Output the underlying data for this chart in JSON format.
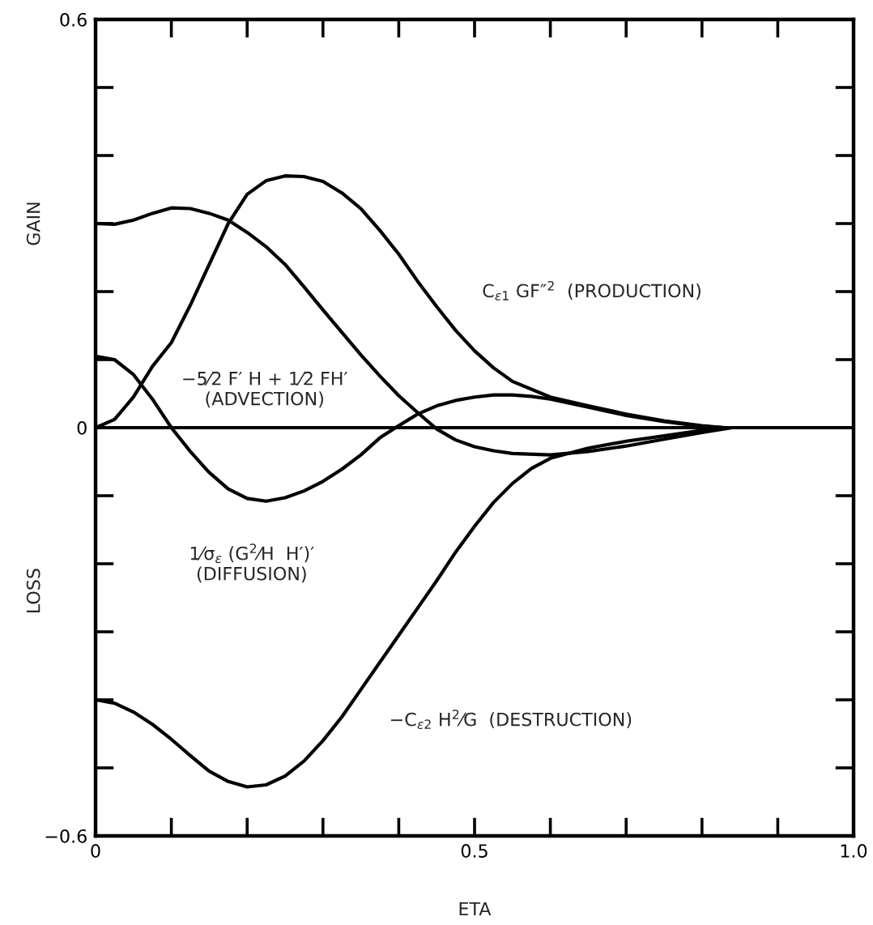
{
  "chart_data": {
    "type": "line",
    "xlabel": "ETA",
    "xlim": [
      0,
      1.0
    ],
    "ylim": [
      -0.6,
      0.6
    ],
    "xticks": [
      0,
      {
        "value": 0.1,
        "label": null
      },
      {
        "value": 0.2,
        "label": null
      },
      {
        "value": 0.3,
        "label": null
      },
      {
        "value": 0.4,
        "label": null
      },
      0.5,
      {
        "value": 0.6,
        "label": null
      },
      {
        "value": 0.7,
        "label": null
      },
      {
        "value": 0.8,
        "label": null
      },
      {
        "value": 0.9,
        "label": null
      },
      {
        "value": 1.0,
        "label": "1.0"
      }
    ],
    "yticks": [
      {
        "value": -0.6,
        "label": "−0.6"
      },
      {
        "value": -0.5,
        "label": null
      },
      {
        "value": -0.4,
        "label": null
      },
      {
        "value": -0.3,
        "label": null
      },
      {
        "value": -0.2,
        "label": null
      },
      {
        "value": -0.1,
        "label": null
      },
      0,
      {
        "value": 0.1,
        "label": null
      },
      {
        "value": 0.2,
        "label": null
      },
      {
        "value": 0.3,
        "label": null
      },
      {
        "value": 0.4,
        "label": null
      },
      {
        "value": 0.5,
        "label": null
      },
      0.6
    ],
    "ref_lines": [
      {
        "axis": "y",
        "value": 0,
        "color": "#000000"
      }
    ],
    "series": [
      {
        "color": "#000000",
        "x": [
          0,
          0.025,
          0.05,
          0.075,
          0.1,
          0.125,
          0.15,
          0.175,
          0.2,
          0.225,
          0.25,
          0.275,
          0.3,
          0.325,
          0.35,
          0.375,
          0.4,
          0.425,
          0.45,
          0.475,
          0.5,
          0.525,
          0.55,
          0.6,
          0.65,
          0.7,
          0.75,
          0.8,
          0.83
        ],
        "values": [
          0,
          0.012,
          0.045,
          0.09,
          0.125,
          0.18,
          0.24,
          0.3,
          0.343,
          0.363,
          0.37,
          0.369,
          0.362,
          0.345,
          0.322,
          0.29,
          0.255,
          0.215,
          0.178,
          0.143,
          0.113,
          0.088,
          0.068,
          0.045,
          0.032,
          0.02,
          0.01,
          0.003,
          0
        ]
      },
      {
        "color": "#000000",
        "x": [
          0,
          0.025,
          0.05,
          0.075,
          0.1,
          0.125,
          0.15,
          0.175,
          0.2,
          0.225,
          0.25,
          0.275,
          0.3,
          0.325,
          0.35,
          0.375,
          0.4,
          0.425,
          0.45,
          0.475,
          0.5,
          0.525,
          0.55,
          0.6,
          0.65,
          0.7,
          0.75,
          0.8,
          0.84
        ],
        "values": [
          0.3,
          0.299,
          0.305,
          0.315,
          0.323,
          0.322,
          0.315,
          0.305,
          0.287,
          0.266,
          0.24,
          0.207,
          0.173,
          0.14,
          0.107,
          0.076,
          0.047,
          0.022,
          -0.002,
          -0.018,
          -0.028,
          -0.034,
          -0.038,
          -0.04,
          -0.035,
          -0.027,
          -0.017,
          -0.007,
          0
        ]
      },
      {
        "color": "#000000",
        "x": [
          0,
          0.025,
          0.05,
          0.075,
          0.1,
          0.125,
          0.15,
          0.175,
          0.2,
          0.225,
          0.25,
          0.275,
          0.3,
          0.325,
          0.35,
          0.375,
          0.4,
          0.425,
          0.45,
          0.475,
          0.5,
          0.525,
          0.55,
          0.575,
          0.6,
          0.65,
          0.7,
          0.75,
          0.8,
          0.83
        ],
        "values": [
          0.105,
          0.1,
          0.078,
          0.042,
          0.0,
          -0.035,
          -0.066,
          -0.09,
          -0.104,
          -0.108,
          -0.103,
          -0.093,
          -0.079,
          -0.061,
          -0.04,
          -0.015,
          0.003,
          0.02,
          0.032,
          0.04,
          0.045,
          0.048,
          0.048,
          0.046,
          0.042,
          0.03,
          0.018,
          0.009,
          0.002,
          0
        ]
      },
      {
        "color": "#000000",
        "x": [
          0,
          0.025,
          0.05,
          0.075,
          0.1,
          0.125,
          0.15,
          0.175,
          0.2,
          0.225,
          0.25,
          0.275,
          0.3,
          0.325,
          0.35,
          0.375,
          0.4,
          0.425,
          0.45,
          0.475,
          0.5,
          0.525,
          0.55,
          0.575,
          0.6,
          0.65,
          0.7,
          0.75,
          0.8,
          0.83
        ],
        "values": [
          -0.4,
          -0.405,
          -0.418,
          -0.436,
          -0.458,
          -0.482,
          -0.505,
          -0.52,
          -0.528,
          -0.525,
          -0.512,
          -0.49,
          -0.46,
          -0.425,
          -0.385,
          -0.345,
          -0.305,
          -0.265,
          -0.225,
          -0.183,
          -0.145,
          -0.11,
          -0.082,
          -0.06,
          -0.045,
          -0.03,
          -0.02,
          -0.012,
          -0.004,
          0
        ]
      }
    ],
    "annotations": [
      "GAIN",
      "LOSS",
      "C$_{ε1}$ GF″$^{2}$  (PRODUCTION)",
      "−5⁄2 F′ H + 1⁄2 FH′\n(ADVECTION)",
      "1⁄σ$_{ε}$ (G$^{2}$⁄H  H′)′\n(DIFFUSION)",
      "−C$_{ε2}$ H$^{2}$⁄G  (DESTRUCTION)"
    ]
  }
}
